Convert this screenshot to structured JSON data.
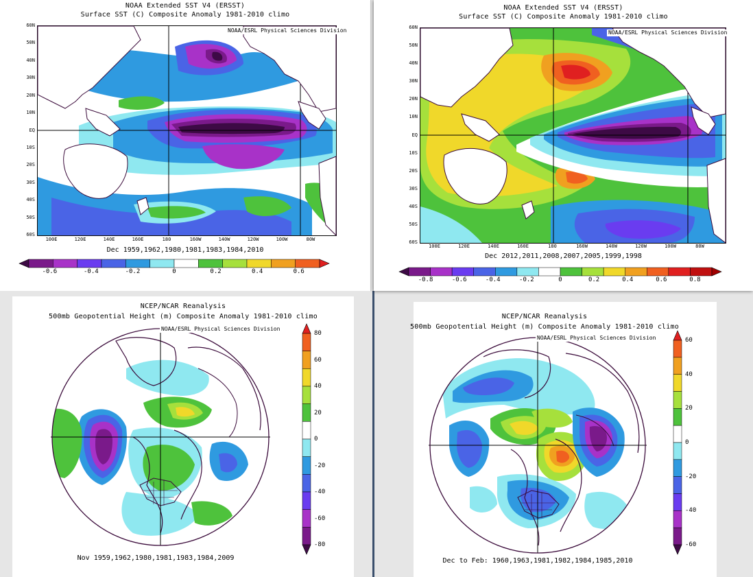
{
  "panels": {
    "sst_left": {
      "title_line1": "NOAA Extended SST V4 (ERSST)",
      "title_line2": "Surface SST (C) Composite Anomaly 1981-2010 climo",
      "credit": "NOAA/ESRL Physical Sciences Division",
      "lat_labels": [
        "60N",
        "50N",
        "40N",
        "30N",
        "20N",
        "10N",
        "EQ",
        "10S",
        "20S",
        "30S",
        "40S",
        "50S",
        "60S"
      ],
      "lon_labels": [
        "100E",
        "120E",
        "140E",
        "160E",
        "180",
        "160W",
        "140W",
        "120W",
        "100W",
        "80W"
      ],
      "caption": "Dec 1959,1962,1980,1981,1983,1984,2010",
      "colorbar_ticks": [
        "-0.6",
        "-0.4",
        "-0.2",
        "0",
        "0.2",
        "0.4",
        "0.6"
      ]
    },
    "sst_right": {
      "title_line1": "NOAA Extended SST V4 (ERSST)",
      "title_line2": "Surface SST (C) Composite Anomaly 1981-2010 climo",
      "credit": "NOAA/ESRL Physical Sciences Division",
      "lat_labels": [
        "60N",
        "50N",
        "40N",
        "30N",
        "20N",
        "10N",
        "EQ",
        "10S",
        "20S",
        "30S",
        "40S",
        "50S",
        "60S"
      ],
      "lon_labels": [
        "100E",
        "120E",
        "140E",
        "160E",
        "180",
        "160W",
        "140W",
        "120W",
        "100W",
        "80W"
      ],
      "caption": "Dec 2012,2011,2008,2007,2005,1999,1998",
      "colorbar_ticks": [
        "-0.8",
        "-0.6",
        "-0.4",
        "-0.2",
        "0",
        "0.2",
        "0.4",
        "0.6",
        "0.8"
      ]
    },
    "hgt_left": {
      "title_line1": "NCEP/NCAR Reanalysis",
      "title_line2": "500mb Geopotential Height (m) Composite Anomaly 1981-2010 climo",
      "credit": "NOAA/ESRL Physical Sciences Division",
      "caption": "Nov 1959,1962,1980,1981,1983,1984,2009",
      "colorbar_ticks": [
        "80",
        "60",
        "40",
        "20",
        "0",
        "-20",
        "-40",
        "-60",
        "-80"
      ]
    },
    "hgt_right": {
      "title_line1": "NCEP/NCAR Reanalysis",
      "title_line2": "500mb Geopotential Height (m) Composite Anomaly 1981-2010 climo",
      "credit": "NOAA/ESRL Physical Sciences Division",
      "caption": "Dec to Feb: 1960,1963,1981,1982,1984,1985,2010",
      "colorbar_ticks": [
        "60",
        "40",
        "20",
        "0",
        "-20",
        "-40",
        "-60"
      ]
    }
  },
  "palette": {
    "sst11": [
      "#3d0a45",
      "#7a1a8a",
      "#a832c8",
      "#6a3cf0",
      "#4a64e6",
      "#2f9ae0",
      "#8fe8f0",
      "#ffffff",
      "#4ec23c",
      "#a6e03c",
      "#f0d82a",
      "#f0a020",
      "#f06020",
      "#e02020"
    ],
    "land": "#ffffff",
    "coast": "#3a0a3a"
  }
}
